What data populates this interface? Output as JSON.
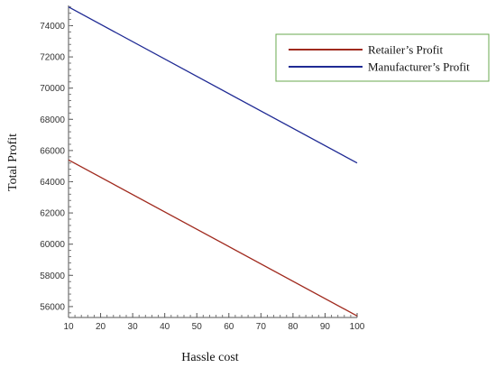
{
  "chart_data": {
    "type": "line",
    "xlabel": "Hassle cost",
    "ylabel": "Total Profit",
    "xlim": [
      10,
      100
    ],
    "ylim": [
      55300,
      75300
    ],
    "x_ticks": [
      10,
      20,
      30,
      40,
      50,
      60,
      70,
      80,
      90,
      100
    ],
    "y_ticks": [
      56000,
      58000,
      60000,
      62000,
      64000,
      66000,
      68000,
      70000,
      72000,
      74000
    ],
    "grid": false,
    "legend_position": "top-right",
    "series": [
      {
        "name": "Retailer’s Profit",
        "color": "#a02a1e",
        "x": [
          10,
          100
        ],
        "y": [
          65400,
          55400
        ]
      },
      {
        "name": "Manufacturer’s Profit",
        "color": "#1f2a94",
        "x": [
          10,
          100
        ],
        "y": [
          75200,
          65200
        ]
      }
    ]
  },
  "legend_border_color": "#6aa84f"
}
